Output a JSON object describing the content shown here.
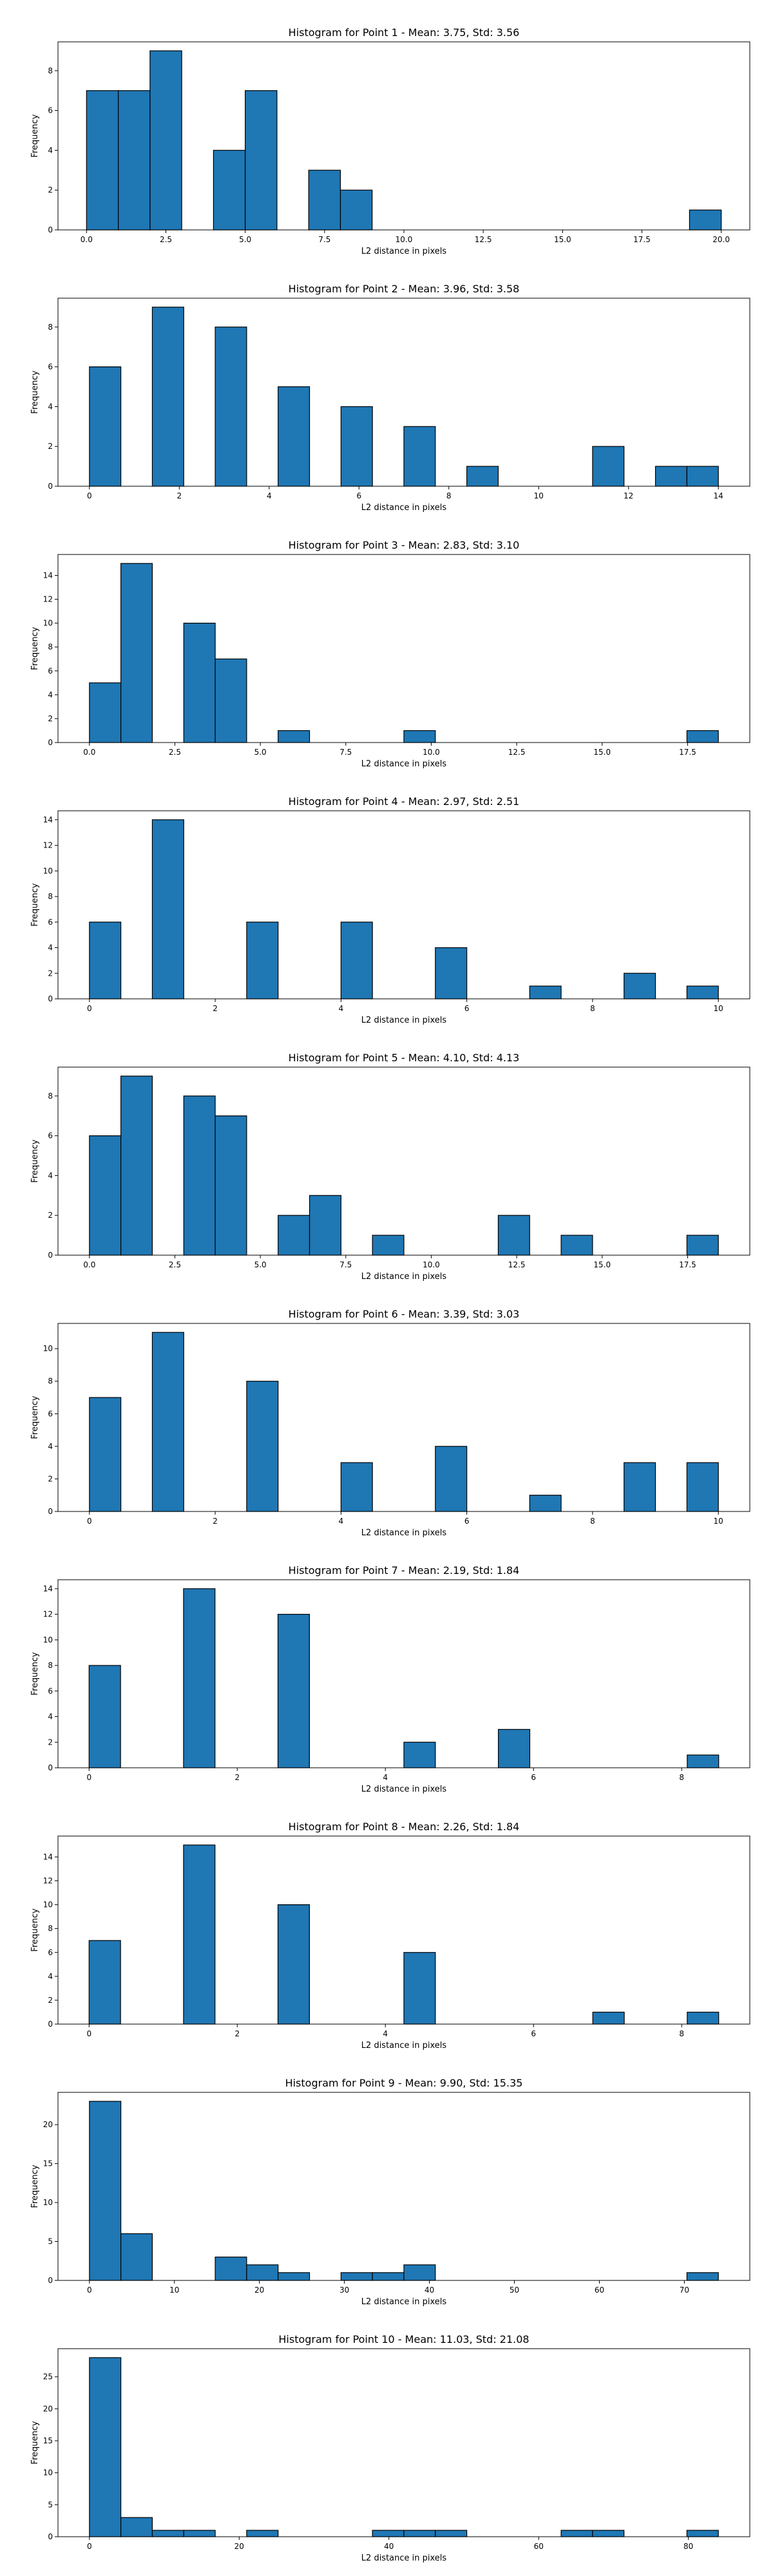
{
  "bar_color": "#1f77b4",
  "edge_color": "#000000",
  "chart_data": [
    {
      "type": "bar",
      "title": "Histogram for Point 1 - Mean: 3.75, Std: 3.56",
      "xlabel": "L2 distance in pixels",
      "ylabel": "Frequency",
      "xlim": [
        -0.9,
        20.9
      ],
      "ylim": [
        0,
        9.45
      ],
      "xticks": [
        0,
        2.5,
        5,
        7.5,
        10,
        12.5,
        15,
        17.5,
        20
      ],
      "xtick_labels": [
        "0.0",
        "2.5",
        "5.0",
        "7.5",
        "10.0",
        "12.5",
        "15.0",
        "17.5",
        "20.0"
      ],
      "yticks": [
        0,
        2,
        4,
        6,
        8
      ],
      "bins": [
        [
          0,
          1,
          7
        ],
        [
          1,
          2,
          7
        ],
        [
          2,
          3,
          9
        ],
        [
          4,
          5,
          4
        ],
        [
          5,
          6,
          7
        ],
        [
          7,
          8,
          3
        ],
        [
          8,
          9,
          2
        ],
        [
          19,
          20,
          1
        ]
      ]
    },
    {
      "type": "bar",
      "title": "Histogram for Point 2 - Mean: 3.96, Std: 3.58",
      "xlabel": "L2 distance in pixels",
      "ylabel": "Frequency",
      "xlim": [
        -0.7,
        14.7
      ],
      "ylim": [
        0,
        9.45
      ],
      "xticks": [
        0,
        2,
        4,
        6,
        8,
        10,
        12,
        14
      ],
      "xtick_labels": [
        "0",
        "2",
        "4",
        "6",
        "8",
        "10",
        "12",
        "14"
      ],
      "yticks": [
        0,
        2,
        4,
        6,
        8
      ],
      "bins": [
        [
          0,
          0.7,
          6
        ],
        [
          1.4,
          2.1,
          9
        ],
        [
          2.8,
          3.5,
          8
        ],
        [
          4.2,
          4.9,
          5
        ],
        [
          5.6,
          6.3,
          4
        ],
        [
          7,
          7.7,
          3
        ],
        [
          8.4,
          9.1,
          1
        ],
        [
          11.2,
          11.9,
          2
        ],
        [
          12.6,
          13.3,
          1
        ],
        [
          13.3,
          14,
          1
        ]
      ]
    },
    {
      "type": "bar",
      "title": "Histogram for Point 3 - Mean: 2.83, Std: 3.10",
      "xlabel": "L2 distance in pixels",
      "ylabel": "Frequency",
      "xlim": [
        -0.92,
        19.32
      ],
      "ylim": [
        0,
        15.75
      ],
      "xticks": [
        0,
        2.5,
        5,
        7.5,
        10,
        12.5,
        15,
        17.5
      ],
      "xtick_labels": [
        "0.0",
        "2.5",
        "5.0",
        "7.5",
        "10.0",
        "12.5",
        "15.0",
        "17.5"
      ],
      "yticks": [
        0,
        2,
        4,
        6,
        8,
        10,
        12,
        14
      ],
      "bins": [
        [
          0,
          0.92,
          5
        ],
        [
          0.92,
          1.84,
          15
        ],
        [
          2.76,
          3.68,
          10
        ],
        [
          3.68,
          4.6,
          7
        ],
        [
          5.52,
          6.44,
          1
        ],
        [
          9.2,
          10.12,
          1
        ],
        [
          17.48,
          18.4,
          1
        ]
      ]
    },
    {
      "type": "bar",
      "title": "Histogram for Point 4 - Mean: 2.97, Std: 2.51",
      "xlabel": "L2 distance in pixels",
      "ylabel": "Frequency",
      "xlim": [
        -0.5,
        10.5
      ],
      "ylim": [
        0,
        14.7
      ],
      "xticks": [
        0,
        2,
        4,
        6,
        8,
        10
      ],
      "xtick_labels": [
        "0",
        "2",
        "4",
        "6",
        "8",
        "10"
      ],
      "yticks": [
        0,
        2,
        4,
        6,
        8,
        10,
        12,
        14
      ],
      "bins": [
        [
          0,
          0.5,
          6
        ],
        [
          1,
          1.5,
          14
        ],
        [
          2.5,
          3,
          6
        ],
        [
          4,
          4.5,
          6
        ],
        [
          5.5,
          6,
          4
        ],
        [
          7,
          7.5,
          1
        ],
        [
          8.5,
          9,
          2
        ],
        [
          9.5,
          10,
          1
        ]
      ]
    },
    {
      "type": "bar",
      "title": "Histogram for Point 5 - Mean: 4.10, Std: 4.13",
      "xlabel": "L2 distance in pixels",
      "ylabel": "Frequency",
      "xlim": [
        -0.92,
        19.32
      ],
      "ylim": [
        0,
        9.45
      ],
      "xticks": [
        0,
        2.5,
        5,
        7.5,
        10,
        12.5,
        15,
        17.5
      ],
      "xtick_labels": [
        "0.0",
        "2.5",
        "5.0",
        "7.5",
        "10.0",
        "12.5",
        "15.0",
        "17.5"
      ],
      "yticks": [
        0,
        2,
        4,
        6,
        8
      ],
      "bins": [
        [
          0,
          0.92,
          6
        ],
        [
          0.92,
          1.84,
          9
        ],
        [
          2.76,
          3.68,
          8
        ],
        [
          3.68,
          4.6,
          7
        ],
        [
          5.52,
          6.44,
          2
        ],
        [
          6.44,
          7.36,
          3
        ],
        [
          8.28,
          9.2,
          1
        ],
        [
          11.96,
          12.88,
          2
        ],
        [
          13.8,
          14.72,
          1
        ],
        [
          17.48,
          18.4,
          1
        ]
      ]
    },
    {
      "type": "bar",
      "title": "Histogram for Point 6 - Mean: 3.39, Std: 3.03",
      "xlabel": "L2 distance in pixels",
      "ylabel": "Frequency",
      "xlim": [
        -0.5,
        10.5
      ],
      "ylim": [
        0,
        11.55
      ],
      "xticks": [
        0,
        2,
        4,
        6,
        8,
        10
      ],
      "xtick_labels": [
        "0",
        "2",
        "4",
        "6",
        "8",
        "10"
      ],
      "yticks": [
        0,
        2,
        4,
        6,
        8,
        10
      ],
      "bins": [
        [
          0,
          0.5,
          7
        ],
        [
          1,
          1.5,
          11
        ],
        [
          2.5,
          3,
          8
        ],
        [
          4,
          4.5,
          3
        ],
        [
          5.5,
          6,
          4
        ],
        [
          7,
          7.5,
          1
        ],
        [
          8.5,
          9,
          3
        ],
        [
          9.5,
          10,
          3
        ]
      ]
    },
    {
      "type": "bar",
      "title": "Histogram for Point 7 - Mean: 2.19, Std: 1.84",
      "xlabel": "L2 distance in pixels",
      "ylabel": "Frequency",
      "xlim": [
        -0.42,
        8.92
      ],
      "ylim": [
        0,
        14.7
      ],
      "xticks": [
        0,
        2,
        4,
        6,
        8
      ],
      "xtick_labels": [
        "0",
        "2",
        "4",
        "6",
        "8"
      ],
      "yticks": [
        0,
        2,
        4,
        6,
        8,
        10,
        12,
        14
      ],
      "bins": [
        [
          0,
          0.425,
          8
        ],
        [
          1.275,
          1.7,
          14
        ],
        [
          2.55,
          2.975,
          12
        ],
        [
          4.25,
          4.675,
          2
        ],
        [
          5.525,
          5.95,
          3
        ],
        [
          8.075,
          8.5,
          1
        ]
      ]
    },
    {
      "type": "bar",
      "title": "Histogram for Point 8 - Mean: 2.26, Std: 1.84",
      "xlabel": "L2 distance in pixels",
      "ylabel": "Frequency",
      "xlim": [
        -0.42,
        8.92
      ],
      "ylim": [
        0,
        15.75
      ],
      "xticks": [
        0,
        2,
        4,
        6,
        8
      ],
      "xtick_labels": [
        "0",
        "2",
        "4",
        "6",
        "8"
      ],
      "yticks": [
        0,
        2,
        4,
        6,
        8,
        10,
        12,
        14
      ],
      "bins": [
        [
          0,
          0.425,
          7
        ],
        [
          1.275,
          1.7,
          15
        ],
        [
          2.55,
          2.975,
          10
        ],
        [
          4.25,
          4.675,
          6
        ],
        [
          6.8,
          7.225,
          1
        ],
        [
          8.075,
          8.5,
          1
        ]
      ]
    },
    {
      "type": "bar",
      "title": "Histogram for Point 9 - Mean: 9.90, Std: 15.35",
      "xlabel": "L2 distance in pixels",
      "ylabel": "Frequency",
      "xlim": [
        -3.7,
        77.7
      ],
      "ylim": [
        0,
        24.15
      ],
      "xticks": [
        0,
        10,
        20,
        30,
        40,
        50,
        60,
        70
      ],
      "xtick_labels": [
        "0",
        "10",
        "20",
        "30",
        "40",
        "50",
        "60",
        "70"
      ],
      "yticks": [
        0,
        5,
        10,
        15,
        20
      ],
      "bins": [
        [
          0,
          3.7,
          23
        ],
        [
          3.7,
          7.4,
          6
        ],
        [
          14.8,
          18.5,
          3
        ],
        [
          18.5,
          22.2,
          2
        ],
        [
          22.2,
          25.9,
          1
        ],
        [
          29.6,
          33.3,
          1
        ],
        [
          33.3,
          37,
          1
        ],
        [
          37,
          40.7,
          2
        ],
        [
          70.3,
          74,
          1
        ]
      ]
    },
    {
      "type": "bar",
      "title": "Histogram for Point 10 - Mean: 11.03, Std: 21.08",
      "xlabel": "L2 distance in pixels",
      "ylabel": "Frequency",
      "xlim": [
        -4.2,
        88.2
      ],
      "ylim": [
        0,
        29.4
      ],
      "xticks": [
        0,
        20,
        40,
        60,
        80
      ],
      "xtick_labels": [
        "0",
        "20",
        "40",
        "60",
        "80"
      ],
      "yticks": [
        0,
        5,
        10,
        15,
        20,
        25
      ],
      "bins": [
        [
          0,
          4.2,
          28
        ],
        [
          4.2,
          8.4,
          3
        ],
        [
          8.4,
          12.6,
          1
        ],
        [
          12.6,
          16.8,
          1
        ],
        [
          21,
          25.2,
          1
        ],
        [
          37.8,
          42,
          1
        ],
        [
          42,
          46.2,
          1
        ],
        [
          46.2,
          50.4,
          1
        ],
        [
          63,
          67.2,
          1
        ],
        [
          67.2,
          71.4,
          1
        ],
        [
          79.8,
          84,
          1
        ]
      ]
    }
  ]
}
